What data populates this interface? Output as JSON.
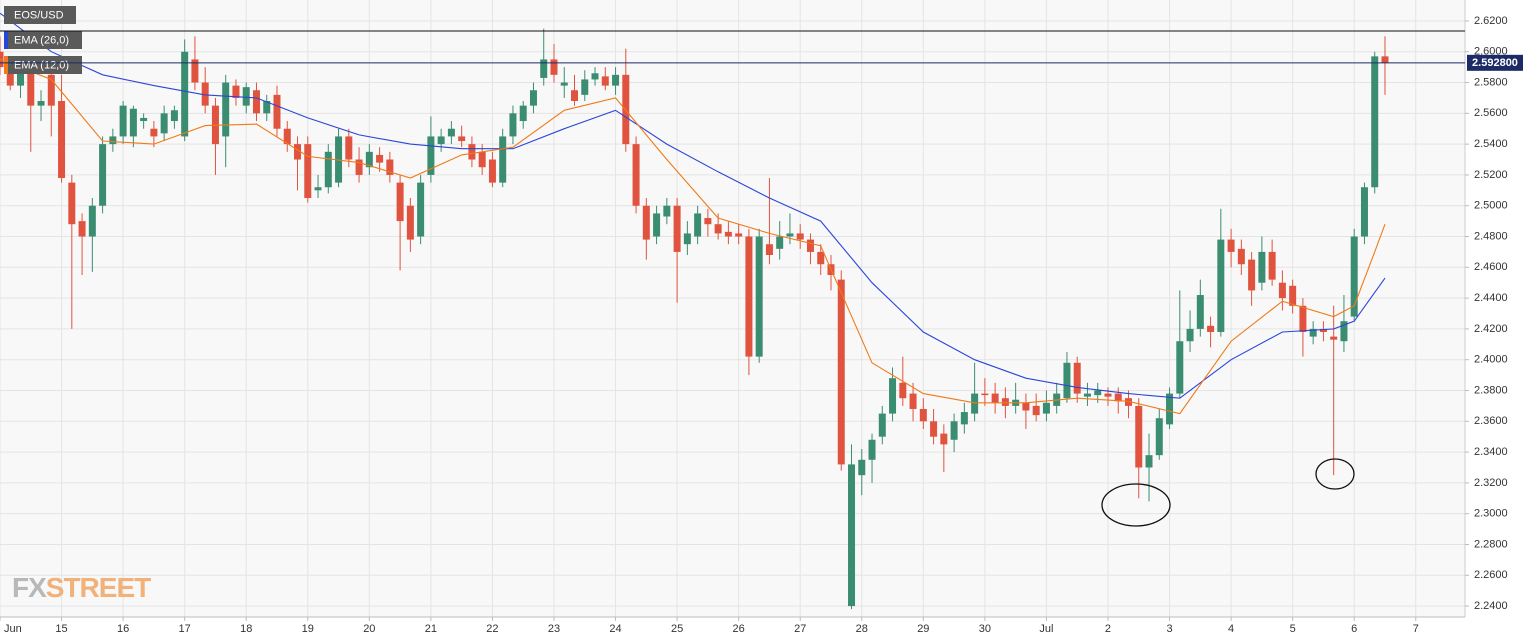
{
  "chart_data": {
    "type": "candlestick",
    "symbol": "EOS/USD",
    "ylim": [
      2.2329,
      2.6336
    ],
    "yticks": [
      {
        "value": 2.24,
        "label": "2.2400"
      },
      {
        "value": 2.26,
        "label": "2.2600"
      },
      {
        "value": 2.28,
        "label": "2.2800"
      },
      {
        "value": 2.3,
        "label": "2.3000"
      },
      {
        "value": 2.32,
        "label": "2.3200"
      },
      {
        "value": 2.34,
        "label": "2.3400"
      },
      {
        "value": 2.36,
        "label": "2.3600"
      },
      {
        "value": 2.38,
        "label": "2.3800"
      },
      {
        "value": 2.4,
        "label": "2.4000"
      },
      {
        "value": 2.42,
        "label": "2.4200"
      },
      {
        "value": 2.44,
        "label": "2.4400"
      },
      {
        "value": 2.46,
        "label": "2.4600"
      },
      {
        "value": 2.48,
        "label": "2.4800"
      },
      {
        "value": 2.5,
        "label": "2.5000"
      },
      {
        "value": 2.52,
        "label": "2.5200"
      },
      {
        "value": 2.54,
        "label": "2.5400"
      },
      {
        "value": 2.56,
        "label": "2.5600"
      },
      {
        "value": 2.58,
        "label": "2.5800"
      },
      {
        "value": 2.6,
        "label": "2.6000"
      },
      {
        "value": 2.62,
        "label": "2.6200"
      }
    ],
    "xlim": [
      0,
      142.8
    ],
    "xticks": [
      {
        "value": 0,
        "label": "Jun"
      },
      {
        "value": 6,
        "label": "15"
      },
      {
        "value": 12,
        "label": "16"
      },
      {
        "value": 18,
        "label": "17"
      },
      {
        "value": 24,
        "label": "18"
      },
      {
        "value": 30,
        "label": "19"
      },
      {
        "value": 36,
        "label": "20"
      },
      {
        "value": 42,
        "label": "21"
      },
      {
        "value": 48,
        "label": "22"
      },
      {
        "value": 54,
        "label": "23"
      },
      {
        "value": 60,
        "label": "24"
      },
      {
        "value": 66,
        "label": "25"
      },
      {
        "value": 72,
        "label": "26"
      },
      {
        "value": 78,
        "label": "27"
      },
      {
        "value": 84,
        "label": "28"
      },
      {
        "value": 90,
        "label": "29"
      },
      {
        "value": 96,
        "label": "30"
      },
      {
        "value": 102,
        "label": "Jul"
      },
      {
        "value": 108,
        "label": "2"
      },
      {
        "value": 114,
        "label": "3"
      },
      {
        "value": 120,
        "label": "4"
      },
      {
        "value": 126,
        "label": "5"
      },
      {
        "value": 132,
        "label": "6"
      },
      {
        "value": 138,
        "label": "7"
      }
    ],
    "grid": true,
    "up_color": "#3b8d72",
    "down_color": "#e0533e",
    "x": [
      0,
      1,
      2,
      3,
      4,
      5,
      6,
      7,
      8,
      9,
      10,
      11,
      12,
      13,
      14,
      15,
      16,
      17,
      18,
      19,
      20,
      21,
      22,
      23,
      24,
      25,
      26,
      27,
      28,
      29,
      30,
      31,
      32,
      33,
      34,
      35,
      36,
      37,
      38,
      39,
      40,
      41,
      42,
      43,
      44,
      45,
      46,
      47,
      48,
      49,
      50,
      51,
      52,
      53,
      54,
      55,
      56,
      57,
      58,
      59,
      60,
      61,
      62,
      63,
      64,
      65,
      66,
      67,
      68,
      69,
      70,
      71,
      72,
      73,
      74,
      75,
      76,
      77,
      78,
      79,
      80,
      81,
      82,
      83,
      84,
      85,
      86,
      87,
      88,
      89,
      90,
      91,
      92,
      93,
      94,
      95,
      96,
      97,
      98,
      99,
      100,
      101,
      102,
      103,
      104,
      105,
      106,
      107,
      108,
      109,
      110,
      111,
      112,
      113,
      114,
      115,
      116,
      117,
      118,
      119,
      120,
      121,
      122,
      123,
      124,
      125,
      126,
      127,
      128,
      129,
      130,
      131,
      132,
      133,
      134,
      135
    ],
    "open": [
      2.6,
      2.59,
      2.578,
      2.588,
      2.565,
      2.585,
      2.568,
      2.515,
      2.49,
      2.48,
      2.5,
      2.54,
      2.545,
      2.545,
      2.555,
      2.55,
      2.547,
      2.555,
      2.545,
      2.595,
      2.58,
      2.565,
      2.545,
      2.578,
      2.565,
      2.575,
      2.56,
      2.572,
      2.55,
      2.54,
      2.54,
      2.51,
      2.512,
      2.515,
      2.545,
      2.53,
      2.525,
      2.533,
      2.53,
      2.515,
      2.5,
      2.48,
      2.52,
      2.54,
      2.545,
      2.545,
      2.54,
      2.535,
      2.53,
      2.515,
      2.545,
      2.555,
      2.565,
      2.583,
      2.595,
      2.578,
      2.575,
      2.572,
      2.582,
      2.584,
      2.578,
      2.585,
      2.54,
      2.5,
      2.48,
      2.493,
      2.5,
      2.475,
      2.48,
      2.492,
      2.488,
      2.483,
      2.482,
      2.48,
      2.402,
      2.475,
      2.472,
      2.48,
      2.482,
      2.478,
      2.47,
      2.462,
      2.452,
      2.24,
      2.325,
      2.335,
      2.35,
      2.365,
      2.385,
      2.378,
      2.368,
      2.36,
      2.352,
      2.348,
      2.358,
      2.365,
      2.378,
      2.378,
      2.375,
      2.37,
      2.372,
      2.37,
      2.365,
      2.37,
      2.375,
      2.398,
      2.376,
      2.377,
      2.378,
      2.378,
      2.375,
      2.37,
      2.33,
      2.338,
      2.358,
      2.378,
      2.412,
      2.42,
      2.422,
      2.418,
      2.478,
      2.472,
      2.465,
      2.45,
      2.47,
      2.45,
      2.448,
      2.435,
      2.415,
      2.42,
      2.415,
      2.412,
      2.428,
      2.48,
      2.512,
      2.597
    ],
    "high": [
      2.61,
      2.595,
      2.592,
      2.59,
      2.575,
      2.59,
      2.585,
      2.52,
      2.495,
      2.505,
      2.545,
      2.55,
      2.568,
      2.565,
      2.56,
      2.555,
      2.565,
      2.565,
      2.608,
      2.61,
      2.59,
      2.57,
      2.585,
      2.582,
      2.58,
      2.58,
      2.572,
      2.578,
      2.555,
      2.545,
      2.545,
      2.52,
      2.54,
      2.55,
      2.55,
      2.538,
      2.54,
      2.538,
      2.535,
      2.52,
      2.505,
      2.52,
      2.558,
      2.55,
      2.555,
      2.552,
      2.545,
      2.54,
      2.535,
      2.55,
      2.565,
      2.568,
      2.58,
      2.615,
      2.605,
      2.59,
      2.585,
      2.588,
      2.59,
      2.59,
      2.59,
      2.602,
      2.545,
      2.505,
      2.5,
      2.505,
      2.505,
      2.49,
      2.5,
      2.498,
      2.495,
      2.49,
      2.488,
      2.485,
      2.485,
      2.518,
      2.49,
      2.495,
      2.488,
      2.482,
      2.475,
      2.468,
      2.458,
      2.345,
      2.342,
      2.352,
      2.37,
      2.395,
      2.402,
      2.385,
      2.375,
      2.368,
      2.358,
      2.365,
      2.372,
      2.398,
      2.388,
      2.385,
      2.382,
      2.385,
      2.378,
      2.378,
      2.38,
      2.385,
      2.405,
      2.402,
      2.385,
      2.385,
      2.382,
      2.382,
      2.38,
      2.375,
      2.352,
      2.368,
      2.382,
      2.445,
      2.432,
      2.452,
      2.428,
      2.498,
      2.485,
      2.478,
      2.47,
      2.48,
      2.478,
      2.458,
      2.452,
      2.44,
      2.425,
      2.425,
      2.435,
      2.442,
      2.485,
      2.515,
      2.6,
      2.61
    ],
    "low": [
      2.585,
      2.575,
      2.57,
      2.535,
      2.555,
      2.545,
      2.515,
      2.42,
      2.455,
      2.457,
      2.495,
      2.535,
      2.54,
      2.538,
      2.55,
      2.538,
      2.542,
      2.55,
      2.542,
      2.575,
      2.56,
      2.52,
      2.525,
      2.565,
      2.56,
      2.555,
      2.555,
      2.545,
      2.535,
      2.51,
      2.502,
      2.505,
      2.508,
      2.512,
      2.525,
      2.515,
      2.52,
      2.522,
      2.515,
      2.458,
      2.47,
      2.475,
      2.515,
      2.535,
      2.54,
      2.538,
      2.525,
      2.52,
      2.512,
      2.512,
      2.54,
      2.55,
      2.56,
      2.578,
      2.58,
      2.57,
      2.565,
      2.568,
      2.578,
      2.575,
      2.572,
      2.535,
      2.495,
      2.465,
      2.475,
      2.488,
      2.437,
      2.468,
      2.475,
      2.48,
      2.478,
      2.475,
      2.475,
      2.39,
      2.398,
      2.462,
      2.465,
      2.475,
      2.472,
      2.462,
      2.455,
      2.445,
      2.328,
      2.238,
      2.312,
      2.32,
      2.345,
      2.36,
      2.37,
      2.36,
      2.355,
      2.345,
      2.327,
      2.34,
      2.352,
      2.36,
      2.37,
      2.365,
      2.362,
      2.365,
      2.355,
      2.36,
      2.36,
      2.365,
      2.372,
      2.372,
      2.37,
      2.372,
      2.37,
      2.365,
      2.362,
      2.31,
      2.308,
      2.335,
      2.355,
      2.375,
      2.405,
      2.415,
      2.408,
      2.415,
      2.46,
      2.455,
      2.435,
      2.445,
      2.448,
      2.432,
      2.43,
      2.402,
      2.41,
      2.412,
      2.325,
      2.405,
      2.425,
      2.475,
      2.508,
      2.572
    ],
    "close": [
      2.59,
      2.578,
      2.588,
      2.565,
      2.568,
      2.565,
      2.518,
      2.488,
      2.48,
      2.5,
      2.54,
      2.545,
      2.565,
      2.563,
      2.557,
      2.545,
      2.56,
      2.562,
      2.6,
      2.58,
      2.565,
      2.54,
      2.58,
      2.57,
      2.577,
      2.56,
      2.568,
      2.55,
      2.54,
      2.53,
      2.505,
      2.512,
      2.535,
      2.545,
      2.53,
      2.52,
      2.535,
      2.528,
      2.52,
      2.49,
      2.478,
      2.515,
      2.545,
      2.545,
      2.55,
      2.542,
      2.53,
      2.525,
      2.515,
      2.545,
      2.56,
      2.565,
      2.575,
      2.595,
      2.585,
      2.58,
      2.568,
      2.582,
      2.586,
      2.578,
      2.585,
      2.54,
      2.5,
      2.478,
      2.495,
      2.5,
      2.47,
      2.482,
      2.495,
      2.488,
      2.482,
      2.48,
      2.48,
      2.402,
      2.48,
      2.468,
      2.48,
      2.482,
      2.478,
      2.47,
      2.462,
      2.455,
      2.332,
      2.332,
      2.335,
      2.348,
      2.365,
      2.388,
      2.375,
      2.368,
      2.36,
      2.35,
      2.345,
      2.36,
      2.366,
      2.378,
      2.377,
      2.372,
      2.37,
      2.374,
      2.367,
      2.364,
      2.372,
      2.378,
      2.398,
      2.378,
      2.378,
      2.38,
      2.376,
      2.373,
      2.37,
      2.33,
      2.338,
      2.362,
      2.378,
      2.412,
      2.42,
      2.442,
      2.418,
      2.478,
      2.47,
      2.462,
      2.445,
      2.47,
      2.452,
      2.44,
      2.435,
      2.418,
      2.42,
      2.418,
      2.413,
      2.425,
      2.48,
      2.512,
      2.597,
      2.5928
    ],
    "series": [
      {
        "name": "EMA (26,0)",
        "color": "#2a46d8",
        "x": [
          0,
          5,
          10,
          15,
          20,
          25,
          30,
          35,
          40,
          45,
          50,
          55,
          60,
          65,
          70,
          75,
          80,
          85,
          90,
          95,
          100,
          105,
          110,
          115,
          120,
          125,
          130,
          132,
          135
        ],
        "values": [
          2.625,
          2.6,
          2.585,
          2.578,
          2.572,
          2.57,
          2.557,
          2.546,
          2.54,
          2.537,
          2.537,
          2.55,
          2.562,
          2.54,
          2.522,
          2.505,
          2.49,
          2.45,
          2.418,
          2.4,
          2.388,
          2.382,
          2.378,
          2.375,
          2.4,
          2.418,
          2.42,
          2.425,
          2.453
        ]
      },
      {
        "name": "EMA (12,0)",
        "color": "#f07a18",
        "x": [
          0,
          5,
          10,
          15,
          20,
          25,
          30,
          35,
          40,
          45,
          50,
          55,
          60,
          65,
          70,
          75,
          80,
          85,
          90,
          95,
          100,
          105,
          110,
          115,
          120,
          125,
          130,
          132,
          134,
          135
        ],
        "values": [
          2.595,
          2.582,
          2.542,
          2.54,
          2.552,
          2.553,
          2.532,
          2.528,
          2.518,
          2.533,
          2.538,
          2.562,
          2.57,
          2.53,
          2.492,
          2.482,
          2.474,
          2.398,
          2.378,
          2.372,
          2.372,
          2.375,
          2.373,
          2.365,
          2.412,
          2.438,
          2.428,
          2.435,
          2.47,
          2.488
        ]
      }
    ],
    "price_marker": {
      "value": 2.5928,
      "label": "2.592800",
      "color": "#1c2b66"
    },
    "resistance_line": 2.6135,
    "watermark": [
      "FX",
      "STREET"
    ]
  }
}
